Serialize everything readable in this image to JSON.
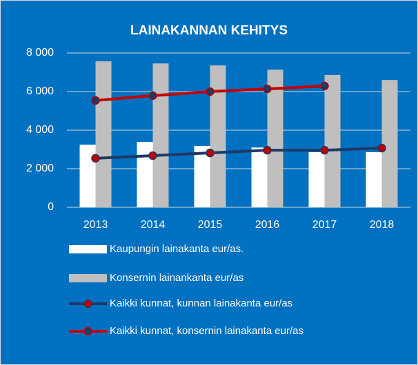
{
  "chart_data": {
    "type": "combo",
    "title": "LAINAKANNAN KEHITYS",
    "categories": [
      "2013",
      "2014",
      "2015",
      "2016",
      "2017",
      "2018"
    ],
    "series": [
      {
        "name": "Kaupungin lainakanta eur/as.",
        "kind": "bar",
        "color": "#ffffff",
        "values": [
          3250,
          3390,
          3180,
          3100,
          2860,
          2860
        ]
      },
      {
        "name": "Konsernin lainankanta eur/as",
        "kind": "bar",
        "color": "#bfbfbf",
        "values": [
          7570,
          7460,
          7360,
          7140,
          6860,
          6600
        ]
      },
      {
        "name": "Kaikki kunnat, kunnan lainakanta eur/as",
        "kind": "line",
        "color": "#1f3864",
        "marker_color": "#c00000",
        "values": [
          2540,
          2680,
          2820,
          2960,
          2960,
          3070
        ]
      },
      {
        "name": "Kaikki kunnat, konsernin lainakanta eur/as",
        "kind": "line",
        "color": "#c00000",
        "marker_color": "#1f3864",
        "values": [
          5540,
          5790,
          6000,
          6140,
          6290,
          null
        ]
      }
    ],
    "ylim": [
      0,
      8000
    ],
    "yticks": [
      0,
      {
        "value": 2000,
        "label": "2 000"
      },
      {
        "value": 4000,
        "label": "4 000"
      },
      {
        "value": 6000,
        "label": "6 000"
      },
      {
        "value": 8000,
        "label": "8 000"
      }
    ],
    "grid": true,
    "legend": "bottom",
    "background": "#0070c0"
  }
}
